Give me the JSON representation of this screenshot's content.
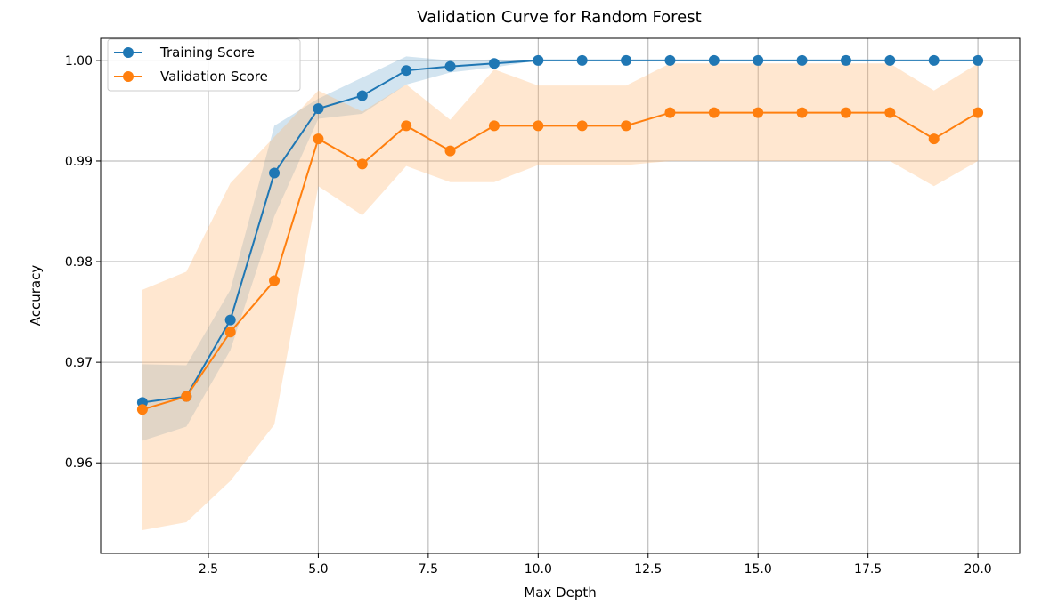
{
  "chart_data": {
    "type": "line",
    "title": "Validation Curve for Random Forest",
    "xlabel": "Max Depth",
    "ylabel": "Accuracy",
    "xlim": [
      0.05,
      20.95
    ],
    "ylim": [
      0.951,
      1.0022
    ],
    "xticks": [
      2.5,
      5.0,
      7.5,
      10.0,
      12.5,
      15.0,
      17.5,
      20.0
    ],
    "xtick_labels": [
      "2.5",
      "5.0",
      "7.5",
      "10.0",
      "12.5",
      "15.0",
      "17.5",
      "20.0"
    ],
    "yticks": [
      0.96,
      0.97,
      0.98,
      0.99,
      1.0
    ],
    "ytick_labels": [
      "0.96",
      "0.97",
      "0.98",
      "0.99",
      "1.00"
    ],
    "grid": true,
    "legend_position": "top-left",
    "x": [
      1,
      2,
      3,
      4,
      5,
      6,
      7,
      8,
      9,
      10,
      11,
      12,
      13,
      14,
      15,
      16,
      17,
      18,
      19,
      20
    ],
    "series": [
      {
        "name": "Training Score",
        "color": "#1f77b4",
        "band_color": "#1f77b4",
        "values": [
          0.966,
          0.9666,
          0.9742,
          0.9888,
          0.9952,
          0.9965,
          0.999,
          0.9994,
          0.9997,
          1.0,
          1.0,
          1.0,
          1.0,
          1.0,
          1.0,
          1.0,
          1.0,
          1.0,
          1.0,
          1.0
        ],
        "band_low": [
          0.9622,
          0.9636,
          0.9712,
          0.9845,
          0.9942,
          0.9947,
          0.9976,
          0.9988,
          0.9993,
          1.0,
          1.0,
          1.0,
          1.0,
          1.0,
          1.0,
          1.0,
          1.0,
          1.0,
          1.0,
          1.0
        ],
        "band_high": [
          0.9698,
          0.9697,
          0.9772,
          0.9935,
          0.9962,
          0.9983,
          1.0004,
          1.0,
          1.0001,
          1.0,
          1.0,
          1.0,
          1.0,
          1.0,
          1.0,
          1.0,
          1.0,
          1.0,
          1.0,
          1.0
        ]
      },
      {
        "name": "Validation Score",
        "color": "#ff7f0e",
        "band_color": "#ffbb78",
        "values": [
          0.9653,
          0.9666,
          0.973,
          0.9781,
          0.9922,
          0.9897,
          0.9935,
          0.991,
          0.9935,
          0.9935,
          0.9935,
          0.9935,
          0.9948,
          0.9948,
          0.9948,
          0.9948,
          0.9948,
          0.9948,
          0.9922,
          0.9948
        ],
        "band_low": [
          0.9533,
          0.9541,
          0.9582,
          0.9638,
          0.9875,
          0.9846,
          0.9895,
          0.9879,
          0.9879,
          0.9896,
          0.9896,
          0.9896,
          0.99,
          0.99,
          0.99,
          0.99,
          0.99,
          0.99,
          0.9875,
          0.99
        ],
        "band_high": [
          0.9772,
          0.979,
          0.9878,
          0.9924,
          0.997,
          0.9949,
          0.9976,
          0.9941,
          0.9991,
          0.9975,
          0.9975,
          0.9975,
          0.9997,
          0.9997,
          0.9997,
          0.9997,
          0.9997,
          0.9997,
          0.997,
          0.9997
        ]
      }
    ]
  }
}
